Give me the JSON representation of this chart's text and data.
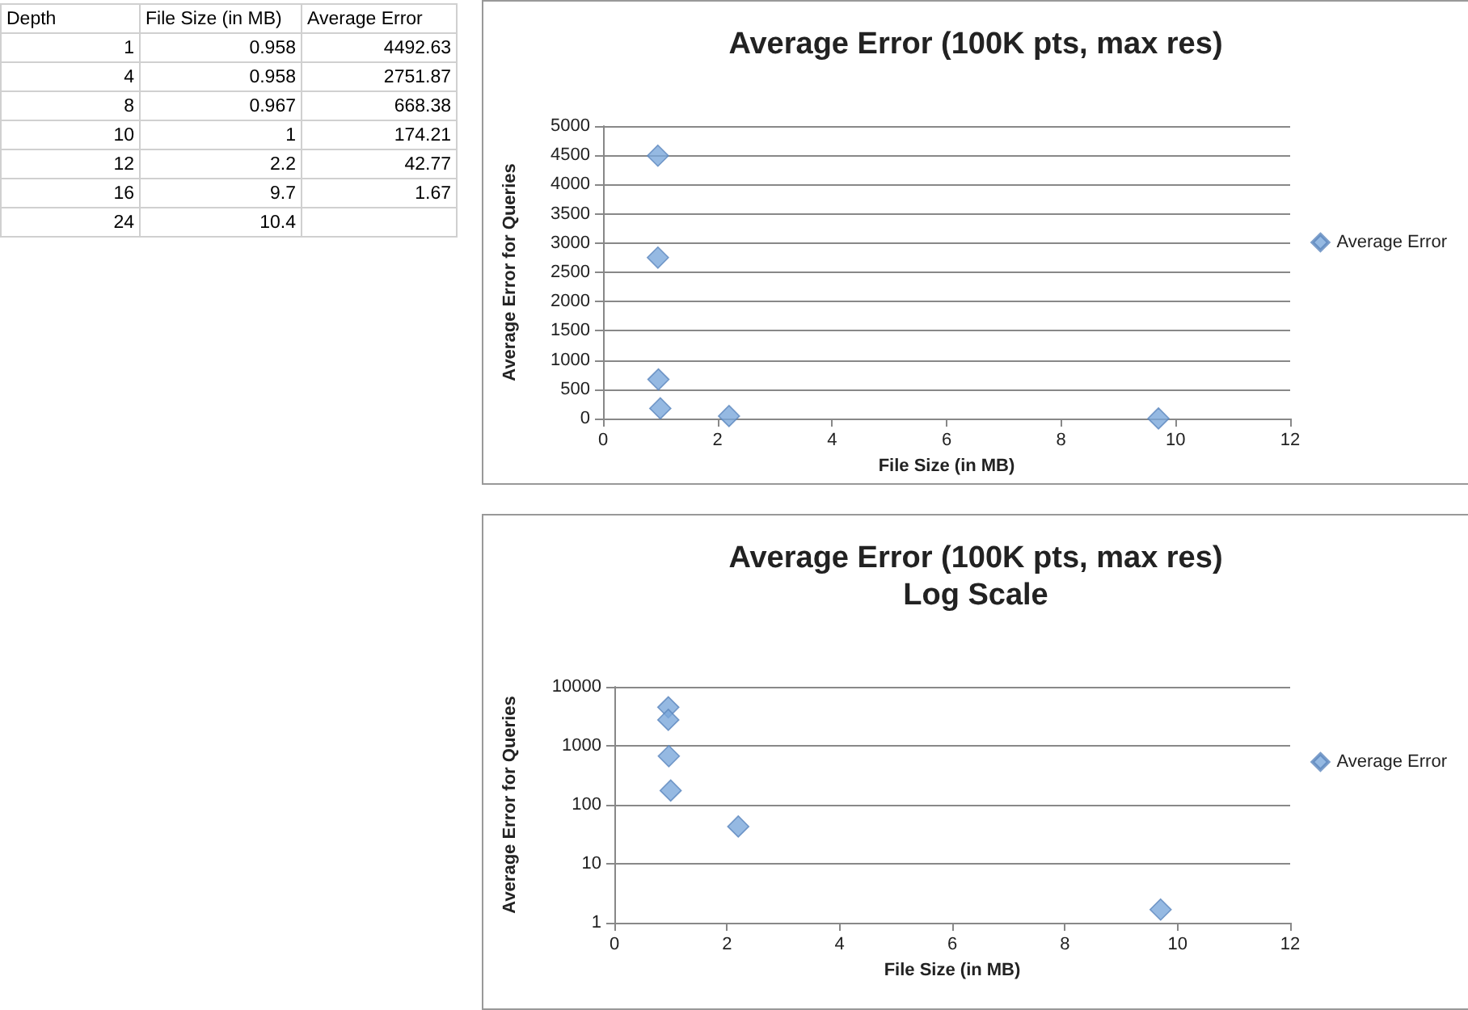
{
  "chart_data": [
    {
      "type": "other",
      "categories": [
        "Depth",
        "File Size (in MB)",
        "Average Error"
      ],
      "annotations": [
        "1",
        "0.958",
        "4492.63",
        "4",
        "0.958",
        "2751.87",
        "8",
        "0.967",
        "668.38",
        "10",
        "1",
        "174.21",
        "12",
        "2.2",
        "42.77",
        "16",
        "9.7",
        "1.67",
        "24",
        "10.4",
        null
      ]
    },
    {
      "type": "scatter",
      "title": "Average Error (100K pts, max res)",
      "xlabel": "File Size (in MB)",
      "ylabel": "Average Error for Queries",
      "x": [
        0.958,
        0.958,
        0.967,
        1,
        2.2,
        9.7
      ],
      "series": [
        {
          "name": "Average Error",
          "color": "#7ba7db",
          "values": [
            4492.63,
            2751.87,
            668.38,
            174.21,
            42.77,
            1.67
          ]
        }
      ],
      "xlim": [
        0,
        12
      ],
      "xticks": [
        0,
        2,
        4,
        6,
        8,
        10,
        12
      ],
      "ylim": [
        0,
        5000
      ],
      "yticks": [
        0,
        500,
        1000,
        1500,
        2000,
        2500,
        3000,
        3500,
        4000,
        4500,
        5000
      ],
      "grid": "y",
      "legend": "right",
      "marker": "diamond"
    },
    {
      "type": "scatter",
      "title": "Average Error (100K pts, max res)",
      "subtitle": "Log Scale",
      "xlabel": "File Size (in MB)",
      "ylabel": "Average Error for Queries",
      "x": [
        0.958,
        0.958,
        0.967,
        1,
        2.2,
        9.7
      ],
      "series": [
        {
          "name": "Average Error",
          "color": "#7ba7db",
          "values": [
            4492.63,
            2751.87,
            668.38,
            174.21,
            42.77,
            1.67
          ]
        }
      ],
      "xlim": [
        0,
        12
      ],
      "xticks": [
        0,
        2,
        4,
        6,
        8,
        10,
        12
      ],
      "ylim": [
        1,
        10000
      ],
      "yticks": [
        1,
        10,
        100,
        1000,
        10000
      ],
      "log": "y",
      "grid": "y",
      "legend": "right",
      "marker": "diamond"
    }
  ]
}
